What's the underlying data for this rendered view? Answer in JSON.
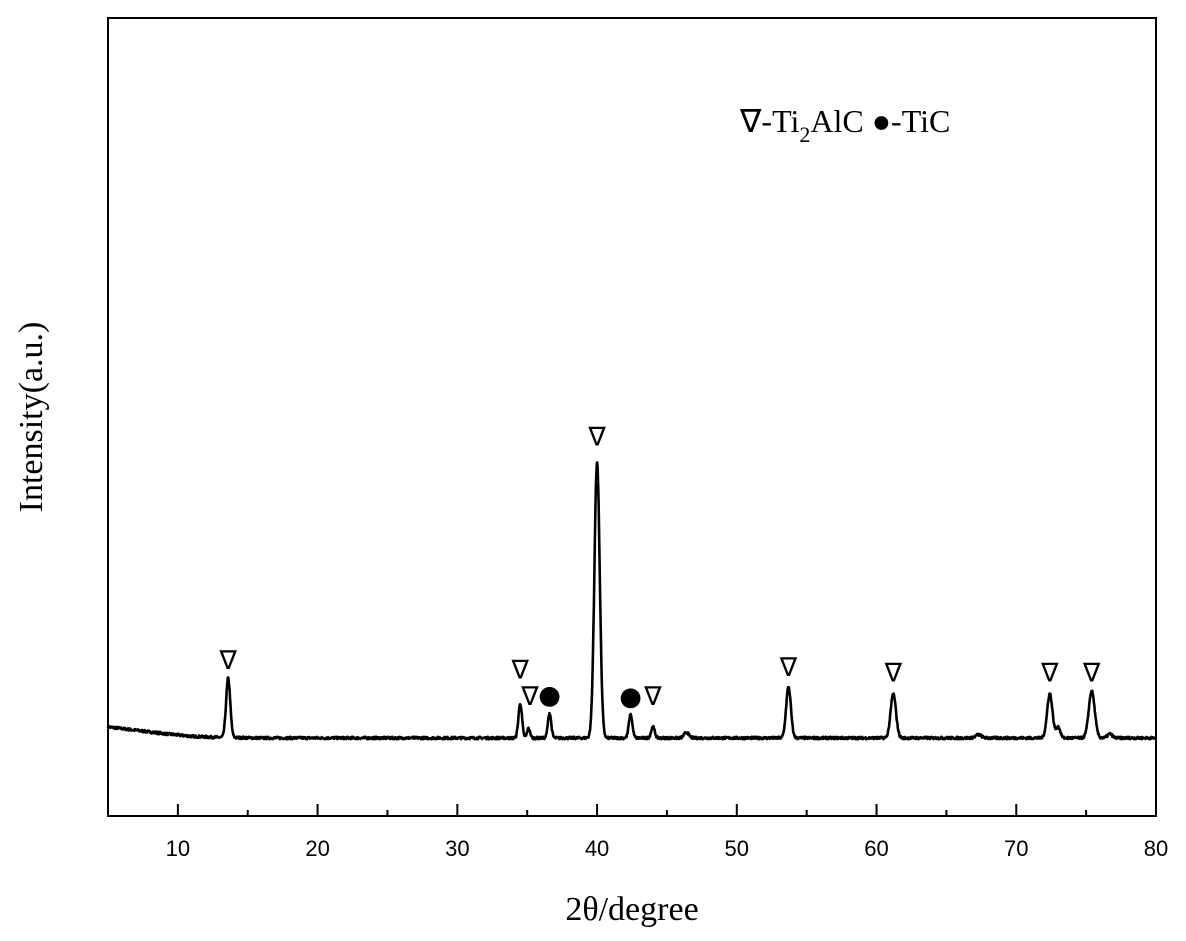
{
  "chart_data": {
    "type": "line",
    "xlabel": "2θ/degree",
    "ylabel": "Intensity(a.u.)",
    "xlim": [
      5,
      80
    ],
    "x_ticks": [
      10,
      20,
      30,
      40,
      50,
      60,
      70,
      80
    ],
    "x_minor_step": 5,
    "y_ticks_shown": false,
    "grid": false,
    "series": [
      {
        "color": "#000000",
        "baseline": 0.0,
        "background": [
          {
            "x": 5,
            "y": 0.04
          },
          {
            "x": 7,
            "y": 0.028
          },
          {
            "x": 9,
            "y": 0.016
          },
          {
            "x": 11,
            "y": 0.006
          },
          {
            "x": 13,
            "y": 0.002
          },
          {
            "x": 16,
            "y": 0.0
          },
          {
            "x": 80,
            "y": 0.0
          }
        ],
        "peaks": [
          {
            "x": 13.6,
            "height": 0.215,
            "width": 0.35
          },
          {
            "x": 34.5,
            "height": 0.125,
            "width": 0.3
          },
          {
            "x": 35.1,
            "height": 0.035,
            "width": 0.25
          },
          {
            "x": 36.6,
            "height": 0.09,
            "width": 0.28
          },
          {
            "x": 40.0,
            "height": 1.0,
            "width": 0.45
          },
          {
            "x": 42.4,
            "height": 0.085,
            "width": 0.3
          },
          {
            "x": 44.0,
            "height": 0.04,
            "width": 0.3
          },
          {
            "x": 46.4,
            "height": 0.02,
            "width": 0.4
          },
          {
            "x": 53.7,
            "height": 0.185,
            "width": 0.4
          },
          {
            "x": 61.2,
            "height": 0.16,
            "width": 0.45
          },
          {
            "x": 67.3,
            "height": 0.012,
            "width": 0.5
          },
          {
            "x": 72.4,
            "height": 0.16,
            "width": 0.45
          },
          {
            "x": 73.0,
            "height": 0.04,
            "width": 0.35
          },
          {
            "x": 75.4,
            "height": 0.17,
            "width": 0.5
          },
          {
            "x": 76.7,
            "height": 0.015,
            "width": 0.4
          }
        ]
      }
    ],
    "legend": {
      "position": "top-right",
      "items": [
        {
          "symbol": "∇",
          "label": "-Ti",
          "subscript": "2",
          "label_after": "AlC"
        },
        {
          "symbol": "●",
          "label": "-TiC"
        }
      ]
    },
    "annotations": [
      {
        "x": 13.6,
        "y": 0.25,
        "symbol": "∇"
      },
      {
        "x": 34.5,
        "y": 0.215,
        "symbol": "∇"
      },
      {
        "x": 35.2,
        "y": 0.12,
        "symbol": "∇"
      },
      {
        "x": 36.6,
        "y": 0.125,
        "symbol": "●"
      },
      {
        "x": 40.0,
        "y": 1.06,
        "symbol": "∇"
      },
      {
        "x": 42.4,
        "y": 0.12,
        "symbol": "●"
      },
      {
        "x": 44.0,
        "y": 0.12,
        "symbol": "∇"
      },
      {
        "x": 53.7,
        "y": 0.225,
        "symbol": "∇"
      },
      {
        "x": 61.2,
        "y": 0.205,
        "symbol": "∇"
      },
      {
        "x": 72.4,
        "y": 0.205,
        "symbol": "∇"
      },
      {
        "x": 75.4,
        "y": 0.205,
        "symbol": "∇"
      }
    ]
  }
}
